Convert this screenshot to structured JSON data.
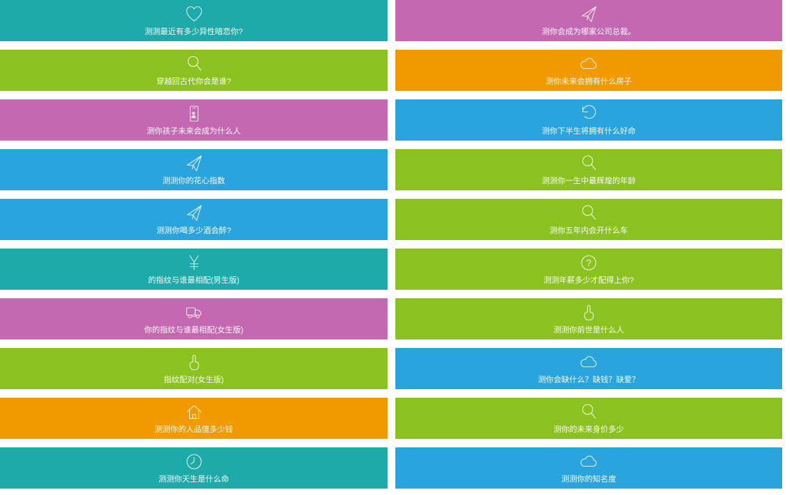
{
  "palette": {
    "teal": "#1daaa8",
    "green": "#8bc220",
    "purple": "#c468b1",
    "orange": "#f39a01",
    "blue": "#2aa4dd",
    "card_text": "#ffffff"
  },
  "cards": [
    {
      "label": "测测最近有多少异性暗恋你?",
      "icon": "heart-icon",
      "color": "teal"
    },
    {
      "label": "测你会成为哪家公司总裁。",
      "icon": "paper-plane-icon",
      "color": "purple"
    },
    {
      "label": "穿越回古代你会是谁?",
      "icon": "magnifier-icon",
      "color": "green"
    },
    {
      "label": "测你未来会拥有什么房子",
      "icon": "cloud-icon",
      "color": "orange"
    },
    {
      "label": "测你孩子未来会成为什么人",
      "icon": "contact-card-icon",
      "color": "purple"
    },
    {
      "label": "测你下半生将拥有什么好命",
      "icon": "undo-arrow-icon",
      "color": "blue"
    },
    {
      "label": "测测你的花心指数",
      "icon": "paper-plane-icon",
      "color": "blue"
    },
    {
      "label": "测测你一生中最辉煌的年龄",
      "icon": "magnifier-icon",
      "color": "green"
    },
    {
      "label": "测测你喝多少酒会醉?",
      "icon": "paper-plane-icon",
      "color": "blue"
    },
    {
      "label": "测你五年内会开什么车",
      "icon": "magnifier-icon",
      "color": "green"
    },
    {
      "label": "的指纹与谁最相配(男生版)",
      "icon": "yen-icon",
      "color": "teal"
    },
    {
      "label": "测测年薪多少才配得上你?",
      "icon": "question-circle-icon",
      "color": "green"
    },
    {
      "label": "你的指纹与谁最相配(女生版)",
      "icon": "truck-icon",
      "color": "purple"
    },
    {
      "label": "测测你前世是什么人",
      "icon": "hand-pointer-icon",
      "color": "green"
    },
    {
      "label": "指纹配对(女生版)",
      "icon": "hand-pointer-icon",
      "color": "green"
    },
    {
      "label": "测你会缺什么？缺钱？缺爱？",
      "icon": "cloud-icon",
      "color": "blue"
    },
    {
      "label": "测测你的人品值多少钱",
      "icon": "house-icon",
      "color": "orange"
    },
    {
      "label": "测你的未来身价多少",
      "icon": "magnifier-icon",
      "color": "green"
    },
    {
      "label": "测测你天生是什么命",
      "icon": "clock-icon",
      "color": "teal"
    },
    {
      "label": "测测你的知名度",
      "icon": "cloud-icon",
      "color": "blue"
    }
  ]
}
